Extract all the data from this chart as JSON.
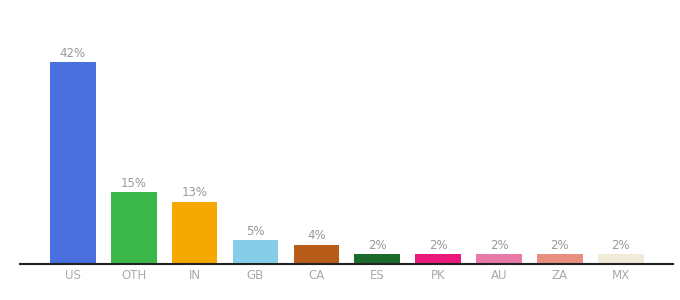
{
  "categories": [
    "US",
    "OTH",
    "IN",
    "GB",
    "CA",
    "ES",
    "PK",
    "AU",
    "ZA",
    "MX"
  ],
  "values": [
    42,
    15,
    13,
    5,
    4,
    2,
    2,
    2,
    2,
    2
  ],
  "bar_colors": [
    "#4a6fde",
    "#3cb84a",
    "#f5a800",
    "#85cde8",
    "#b85c1a",
    "#1a6b2a",
    "#e8197a",
    "#e87aaa",
    "#e89080",
    "#f0ead8"
  ],
  "label_fontsize": 8.5,
  "value_fontsize": 8.5,
  "background_color": "#ffffff",
  "ylim": [
    0,
    50
  ],
  "bar_width": 0.75
}
